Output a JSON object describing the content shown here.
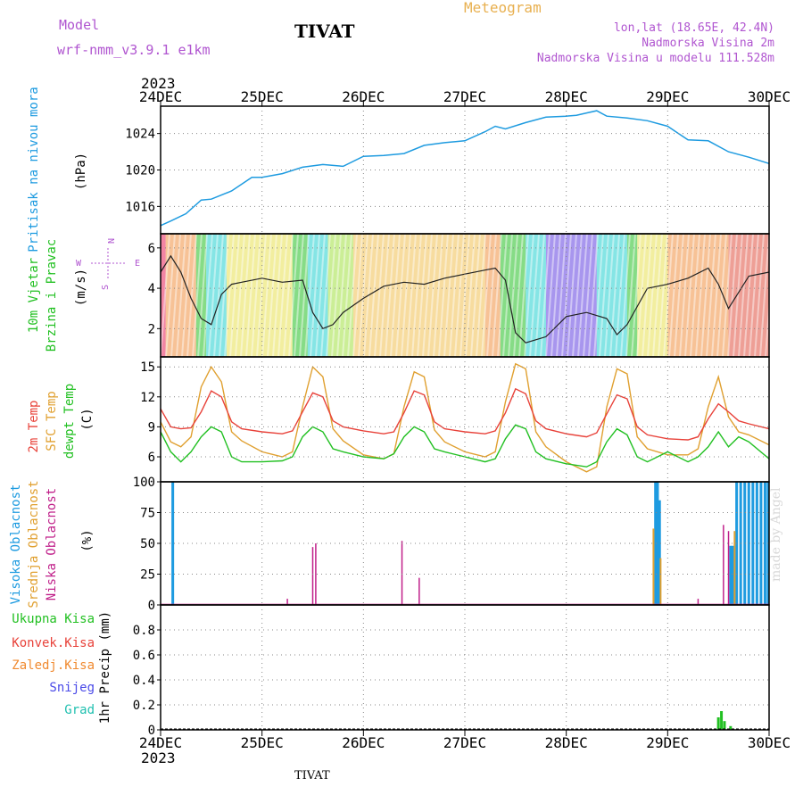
{
  "header": {
    "model_label": "Model",
    "model_name": "wrf-nmm_v3.9.1 e1km",
    "title": "TIVAT",
    "meteogram": "Meteogram",
    "lonlat": "lon,lat (18.65E, 42.4N)",
    "elevation": "Nadmorska Visina 2m",
    "model_elevation": "Nadmorska Visina u modelu 111.528m",
    "footer": "TIVAT",
    "credit": "made by Angel"
  },
  "colors": {
    "pressure": "#1e9be0",
    "temp2m": "#e8423a",
    "sfc": "#e0a030",
    "dewpt": "#22c022",
    "high_cloud": "#1e9be0",
    "mid_cloud": "#e0a030",
    "low_cloud": "#c0208a",
    "total_precip": "#22c022"
  },
  "chart_data": [
    {
      "type": "line",
      "panel": "pressure",
      "ylabel_left": "Pritisak na nivou mora",
      "unit": "(hPa)",
      "year": "2023",
      "x_ticks": [
        "24DEC",
        "25DEC",
        "26DEC",
        "27DEC",
        "28DEC",
        "29DEC",
        "30DEC"
      ],
      "ylim": [
        1013,
        1027
      ],
      "yticks": [
        "1016",
        "1020",
        "1024"
      ],
      "x": [
        0,
        0.1,
        0.25,
        0.4,
        0.5,
        0.7,
        0.9,
        1.0,
        1.2,
        1.4,
        1.6,
        1.8,
        2.0,
        2.2,
        2.4,
        2.6,
        2.8,
        3.0,
        3.2,
        3.3,
        3.4,
        3.6,
        3.8,
        4.0,
        4.1,
        4.3,
        4.4,
        4.6,
        4.8,
        5.0,
        5.2,
        5.4,
        5.6,
        5.8,
        6.0
      ],
      "series": [
        {
          "values": [
            1013.9,
            1014.4,
            1015.2,
            1016.7,
            1016.8,
            1017.7,
            1019.2,
            1019.2,
            1019.6,
            1020.3,
            1020.6,
            1020.4,
            1021.5,
            1021.6,
            1021.8,
            1022.7,
            1023.0,
            1023.2,
            1024.2,
            1024.8,
            1024.5,
            1025.2,
            1025.8,
            1025.9,
            1026.0,
            1026.5,
            1025.9,
            1025.7,
            1025.4,
            1024.8,
            1023.3,
            1023.2,
            1022.0,
            1021.4,
            1020.7
          ]
        }
      ]
    },
    {
      "type": "line",
      "panel": "wind",
      "ylabel_left": "10m Vjetar",
      "ylabel_left2": "Brzina i Pravac",
      "unit": "(m/s)",
      "compass": {
        "n": "N",
        "s": "S",
        "w": "W",
        "e": "E"
      },
      "ylim": [
        0.6,
        6.7
      ],
      "yticks": [
        "2",
        "4",
        "6"
      ],
      "x": [
        0,
        0.1,
        0.2,
        0.3,
        0.4,
        0.5,
        0.6,
        0.7,
        0.8,
        1.0,
        1.2,
        1.4,
        1.5,
        1.6,
        1.7,
        1.8,
        2.0,
        2.2,
        2.4,
        2.6,
        2.8,
        3.0,
        3.2,
        3.3,
        3.4,
        3.5,
        3.6,
        3.8,
        4.0,
        4.2,
        4.4,
        4.5,
        4.6,
        4.8,
        5.0,
        5.2,
        5.4,
        5.5,
        5.6,
        5.8,
        6.0
      ],
      "series": [
        {
          "values": [
            4.8,
            5.6,
            4.8,
            3.5,
            2.5,
            2.2,
            3.7,
            4.2,
            4.3,
            4.5,
            4.3,
            4.4,
            2.8,
            2.0,
            2.2,
            2.8,
            3.5,
            4.1,
            4.3,
            4.2,
            4.5,
            4.7,
            4.9,
            5.0,
            4.4,
            1.8,
            1.3,
            1.6,
            2.6,
            2.8,
            2.5,
            1.7,
            2.2,
            4.0,
            4.2,
            4.5,
            5.0,
            4.2,
            3.0,
            4.6,
            4.8
          ]
        }
      ]
    },
    {
      "type": "line",
      "panel": "temperature",
      "ylabel_left": "2m Temp",
      "ylabel_left2": "SFC Temp",
      "ylabel_left3": "dewpt Temp",
      "unit": "(C)",
      "ylim": [
        3.5,
        16
      ],
      "yticks": [
        "6",
        "9",
        "12",
        "15"
      ],
      "x": [
        0,
        0.1,
        0.2,
        0.3,
        0.4,
        0.5,
        0.6,
        0.7,
        0.8,
        1.0,
        1.2,
        1.3,
        1.4,
        1.5,
        1.6,
        1.7,
        1.8,
        2.0,
        2.2,
        2.3,
        2.4,
        2.5,
        2.6,
        2.7,
        2.8,
        3.0,
        3.2,
        3.3,
        3.4,
        3.5,
        3.6,
        3.7,
        3.8,
        4.0,
        4.2,
        4.3,
        4.4,
        4.5,
        4.6,
        4.7,
        4.8,
        5.0,
        5.2,
        5.3,
        5.4,
        5.5,
        5.6,
        5.7,
        5.8,
        6.0
      ],
      "series": [
        {
          "name": "2m",
          "values": [
            10.8,
            9.0,
            8.8,
            8.9,
            10.5,
            12.6,
            12.0,
            9.5,
            8.8,
            8.5,
            8.3,
            8.6,
            10.5,
            12.4,
            12.0,
            9.6,
            9.0,
            8.6,
            8.3,
            8.5,
            10.4,
            12.6,
            12.2,
            9.5,
            8.8,
            8.5,
            8.3,
            8.6,
            10.4,
            12.8,
            12.3,
            9.6,
            8.8,
            8.3,
            8.0,
            8.4,
            10.3,
            12.2,
            11.8,
            9.0,
            8.2,
            7.8,
            7.7,
            8.0,
            9.8,
            11.3,
            10.5,
            9.6,
            9.3,
            8.8
          ]
        },
        {
          "name": "SFC",
          "values": [
            9.5,
            7.5,
            7.0,
            8.0,
            13.0,
            15.0,
            13.5,
            8.5,
            7.6,
            6.5,
            6.0,
            6.5,
            11.0,
            15.0,
            14.0,
            8.8,
            7.6,
            6.2,
            5.8,
            6.3,
            11.0,
            14.5,
            14.0,
            8.7,
            7.5,
            6.5,
            6.0,
            6.5,
            11.5,
            15.3,
            14.8,
            8.5,
            7.0,
            5.5,
            4.5,
            5.0,
            11.0,
            14.8,
            14.3,
            8.0,
            6.8,
            6.2,
            6.2,
            6.8,
            11.0,
            14.0,
            10.0,
            8.5,
            8.2,
            7.2
          ]
        },
        {
          "name": "dewpt",
          "values": [
            8.5,
            6.5,
            5.5,
            6.5,
            8.0,
            9.0,
            8.5,
            6.0,
            5.5,
            5.5,
            5.6,
            6.0,
            8.0,
            9.0,
            8.5,
            6.8,
            6.5,
            6.0,
            5.8,
            6.3,
            8.0,
            9.0,
            8.5,
            6.8,
            6.5,
            6.0,
            5.5,
            5.8,
            7.8,
            9.2,
            8.8,
            6.5,
            5.8,
            5.3,
            5.0,
            5.5,
            7.5,
            8.8,
            8.2,
            6.0,
            5.5,
            6.5,
            5.5,
            6.0,
            7.0,
            8.5,
            7.0,
            8.0,
            7.5,
            5.8
          ]
        }
      ]
    },
    {
      "type": "bar",
      "panel": "clouds",
      "ylabel_left": "Visoka Oblacnost",
      "ylabel_left2": "Srednja Oblacnost",
      "ylabel_left3": "Niska Oblacnost",
      "unit": "(%)",
      "ylim": [
        0,
        100
      ],
      "yticks": [
        "0",
        "25",
        "50",
        "75",
        "100"
      ],
      "series": [
        {
          "name": "high",
          "points": [
            [
              0.12,
              100
            ],
            [
              4.88,
              100
            ],
            [
              4.9,
              100
            ],
            [
              4.92,
              85
            ],
            [
              5.62,
              48
            ],
            [
              5.64,
              48
            ],
            [
              5.68,
              100
            ],
            [
              5.72,
              100
            ],
            [
              5.76,
              100
            ],
            [
              5.8,
              100
            ],
            [
              5.84,
              100
            ],
            [
              5.88,
              100
            ],
            [
              5.92,
              100
            ],
            [
              5.96,
              100
            ],
            [
              5.99,
              100
            ]
          ]
        },
        {
          "name": "mid",
          "points": [
            [
              4.86,
              62
            ],
            [
              4.93,
              38
            ],
            [
              5.66,
              60
            ]
          ]
        },
        {
          "name": "low",
          "points": [
            [
              1.25,
              5
            ],
            [
              1.5,
              47
            ],
            [
              1.53,
              50
            ],
            [
              2.38,
              52
            ],
            [
              2.55,
              22
            ],
            [
              5.3,
              5
            ],
            [
              5.55,
              65
            ],
            [
              5.6,
              60
            ]
          ]
        }
      ]
    },
    {
      "type": "bar",
      "panel": "precip",
      "ylabel_left": "1hr Precip (mm)",
      "legend": [
        "Ukupna Kisa",
        "Konvek.Kisa",
        "Zaledj.Kisa",
        "Snijeg",
        "Grad"
      ],
      "year": "2023",
      "x_ticks": [
        "24DEC",
        "25DEC",
        "26DEC",
        "27DEC",
        "28DEC",
        "29DEC",
        "30DEC"
      ],
      "ylim": [
        0,
        1
      ],
      "yticks": [
        "0",
        "0.2",
        "0.4",
        "0.6",
        "0.8"
      ],
      "series": [
        {
          "name": "Ukupna Kisa",
          "points": [
            [
              5.5,
              0.1
            ],
            [
              5.53,
              0.15
            ],
            [
              5.56,
              0.07
            ],
            [
              5.62,
              0.03
            ]
          ]
        }
      ]
    }
  ]
}
